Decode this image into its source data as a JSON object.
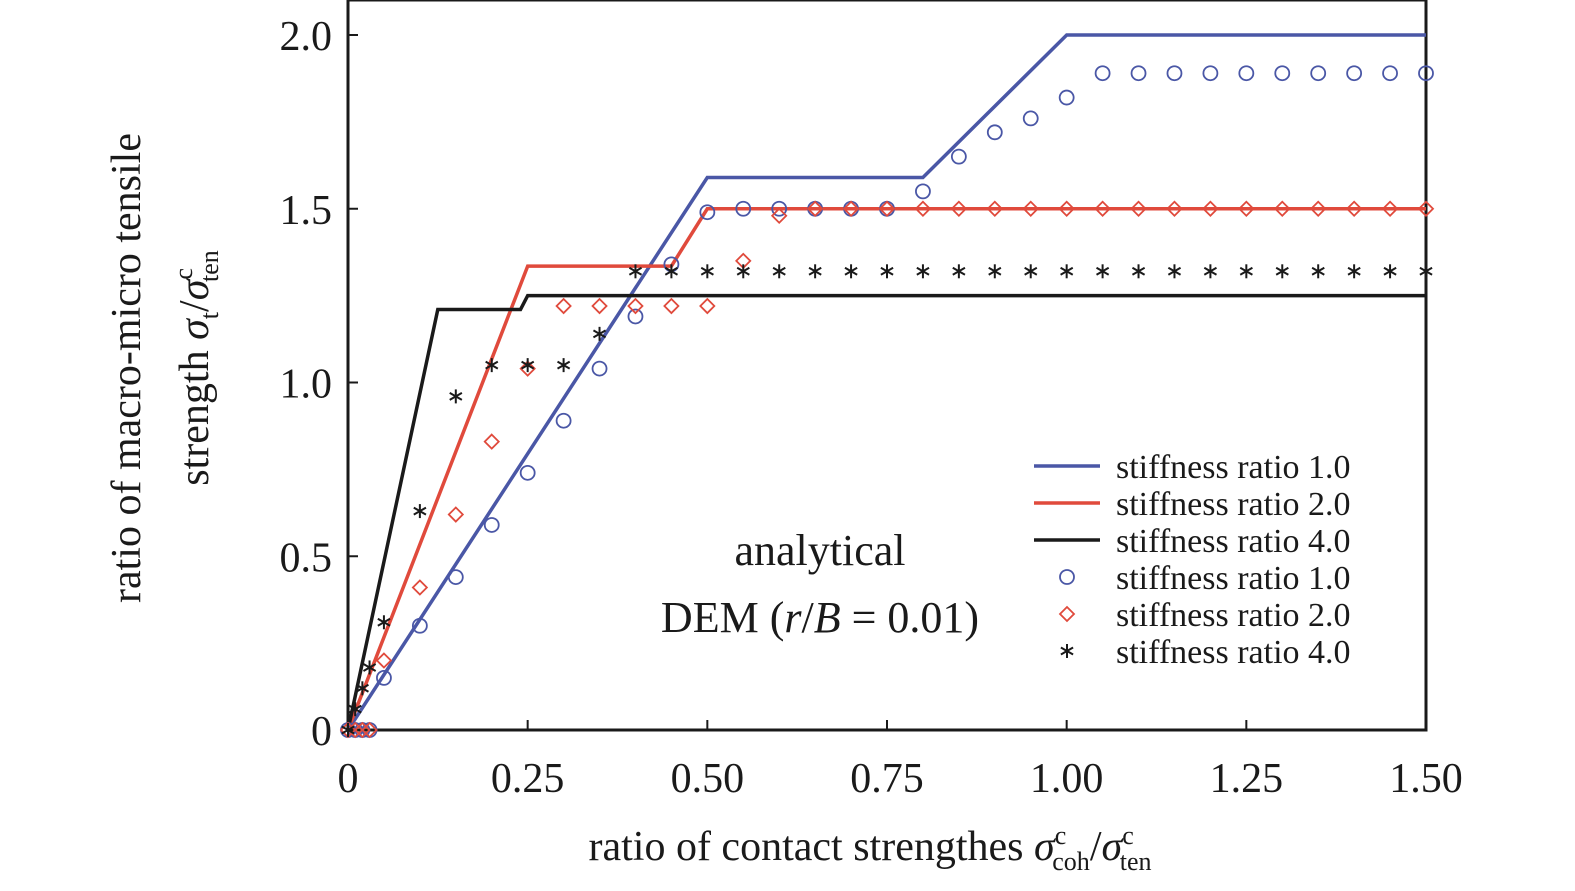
{
  "chart_data": {
    "type": "line",
    "title": "",
    "xlabel": {
      "main": "ratio of contact strengthes ",
      "sym1": "σ",
      "sup1": "c",
      "sub1": "coh",
      "slash": "/",
      "sym2": "σ",
      "sup2": "c",
      "sub2": "ten"
    },
    "ylabel": {
      "line1": "ratio of macro-micro tensile",
      "line2": {
        "main": "strength ",
        "sym1": "σ",
        "sub1": "t",
        "slash": "/",
        "sym2": "σ",
        "sup2": "c",
        "sub2": "ten"
      }
    },
    "xlim": [
      0,
      1.5
    ],
    "ylim": [
      0,
      2.0
    ],
    "xticks": [
      0,
      0.25,
      0.5,
      0.75,
      1.0,
      1.25,
      1.5
    ],
    "xtick_labels": [
      "0",
      "0.25",
      "0.50",
      "0.75",
      "1.00",
      "1.25",
      "1.50"
    ],
    "yticks": [
      0,
      0.5,
      1.0,
      1.5,
      2.0
    ],
    "ytick_labels": [
      "0",
      "0.5",
      "1.0",
      "1.5",
      "2.0"
    ],
    "grid": false,
    "legend_placement": "lower-right",
    "annotation": {
      "line1": "analytical",
      "line2_prefix": "DEM (",
      "r": "r",
      "slash": "/",
      "B": "B",
      "line2_suffix": " = 0.01)"
    },
    "series": [
      {
        "name": "stiffness ratio 1.0",
        "kind": "analytical",
        "color": "#4a57a6",
        "x": [
          0,
          0.5,
          0.8,
          1.0,
          1.5
        ],
        "y": [
          0,
          1.59,
          1.59,
          2.0,
          2.0
        ]
      },
      {
        "name": "stiffness ratio 2.0",
        "kind": "analytical",
        "color": "#e04a3c",
        "x": [
          0,
          0.25,
          0.45,
          0.5,
          1.5
        ],
        "y": [
          0,
          1.335,
          1.335,
          1.5,
          1.5
        ]
      },
      {
        "name": "stiffness ratio 4.0",
        "kind": "analytical",
        "color": "#1a1a1a",
        "x": [
          0,
          0.125,
          0.24,
          0.25,
          1.5
        ],
        "y": [
          0,
          1.21,
          1.21,
          1.25,
          1.25
        ]
      },
      {
        "name": "stiffness ratio 1.0",
        "kind": "DEM",
        "marker": "circle",
        "color": "#4a57a6",
        "x": [
          0,
          0.01,
          0.02,
          0.03,
          0.05,
          0.1,
          0.15,
          0.2,
          0.25,
          0.3,
          0.35,
          0.4,
          0.45,
          0.5,
          0.55,
          0.6,
          0.65,
          0.7,
          0.75,
          0.8,
          0.85,
          0.9,
          0.95,
          1.0,
          1.05,
          1.1,
          1.15,
          1.2,
          1.25,
          1.3,
          1.35,
          1.4,
          1.45,
          1.5
        ],
        "y": [
          0,
          0,
          0,
          0,
          0.15,
          0.3,
          0.44,
          0.59,
          0.74,
          0.89,
          1.04,
          1.19,
          1.34,
          1.49,
          1.5,
          1.5,
          1.5,
          1.5,
          1.5,
          1.55,
          1.65,
          1.72,
          1.76,
          1.82,
          1.89,
          1.89,
          1.89,
          1.89,
          1.89,
          1.89,
          1.89,
          1.89,
          1.89,
          1.89
        ]
      },
      {
        "name": "stiffness ratio 2.0",
        "kind": "DEM",
        "marker": "diamond",
        "color": "#e04a3c",
        "x": [
          0,
          0.01,
          0.02,
          0.03,
          0.05,
          0.1,
          0.15,
          0.2,
          0.25,
          0.3,
          0.35,
          0.4,
          0.45,
          0.5,
          0.55,
          0.6,
          0.65,
          0.7,
          0.75,
          0.8,
          0.85,
          0.9,
          0.95,
          1.0,
          1.05,
          1.1,
          1.15,
          1.2,
          1.25,
          1.3,
          1.35,
          1.4,
          1.45,
          1.5
        ],
        "y": [
          0,
          0,
          0,
          0,
          0.2,
          0.41,
          0.62,
          0.83,
          1.04,
          1.22,
          1.22,
          1.22,
          1.22,
          1.22,
          1.35,
          1.48,
          1.5,
          1.5,
          1.5,
          1.5,
          1.5,
          1.5,
          1.5,
          1.5,
          1.5,
          1.5,
          1.5,
          1.5,
          1.5,
          1.5,
          1.5,
          1.5,
          1.5,
          1.5
        ]
      },
      {
        "name": "stiffness ratio 4.0",
        "kind": "DEM",
        "marker": "asterisk",
        "color": "#1a1a1a",
        "x": [
          0,
          0.01,
          0.02,
          0.03,
          0.05,
          0.1,
          0.15,
          0.2,
          0.25,
          0.3,
          0.35,
          0.4,
          0.45,
          0.5,
          0.55,
          0.6,
          0.65,
          0.7,
          0.75,
          0.8,
          0.85,
          0.9,
          0.95,
          1.0,
          1.05,
          1.1,
          1.15,
          1.2,
          1.25,
          1.3,
          1.35,
          1.4,
          1.45,
          1.5
        ],
        "y": [
          0,
          0.06,
          0.12,
          0.18,
          0.31,
          0.63,
          0.96,
          1.05,
          1.05,
          1.05,
          1.14,
          1.32,
          1.32,
          1.32,
          1.32,
          1.32,
          1.32,
          1.32,
          1.32,
          1.32,
          1.32,
          1.32,
          1.32,
          1.32,
          1.32,
          1.32,
          1.32,
          1.32,
          1.32,
          1.32,
          1.32,
          1.32,
          1.32,
          1.32
        ]
      }
    ]
  }
}
